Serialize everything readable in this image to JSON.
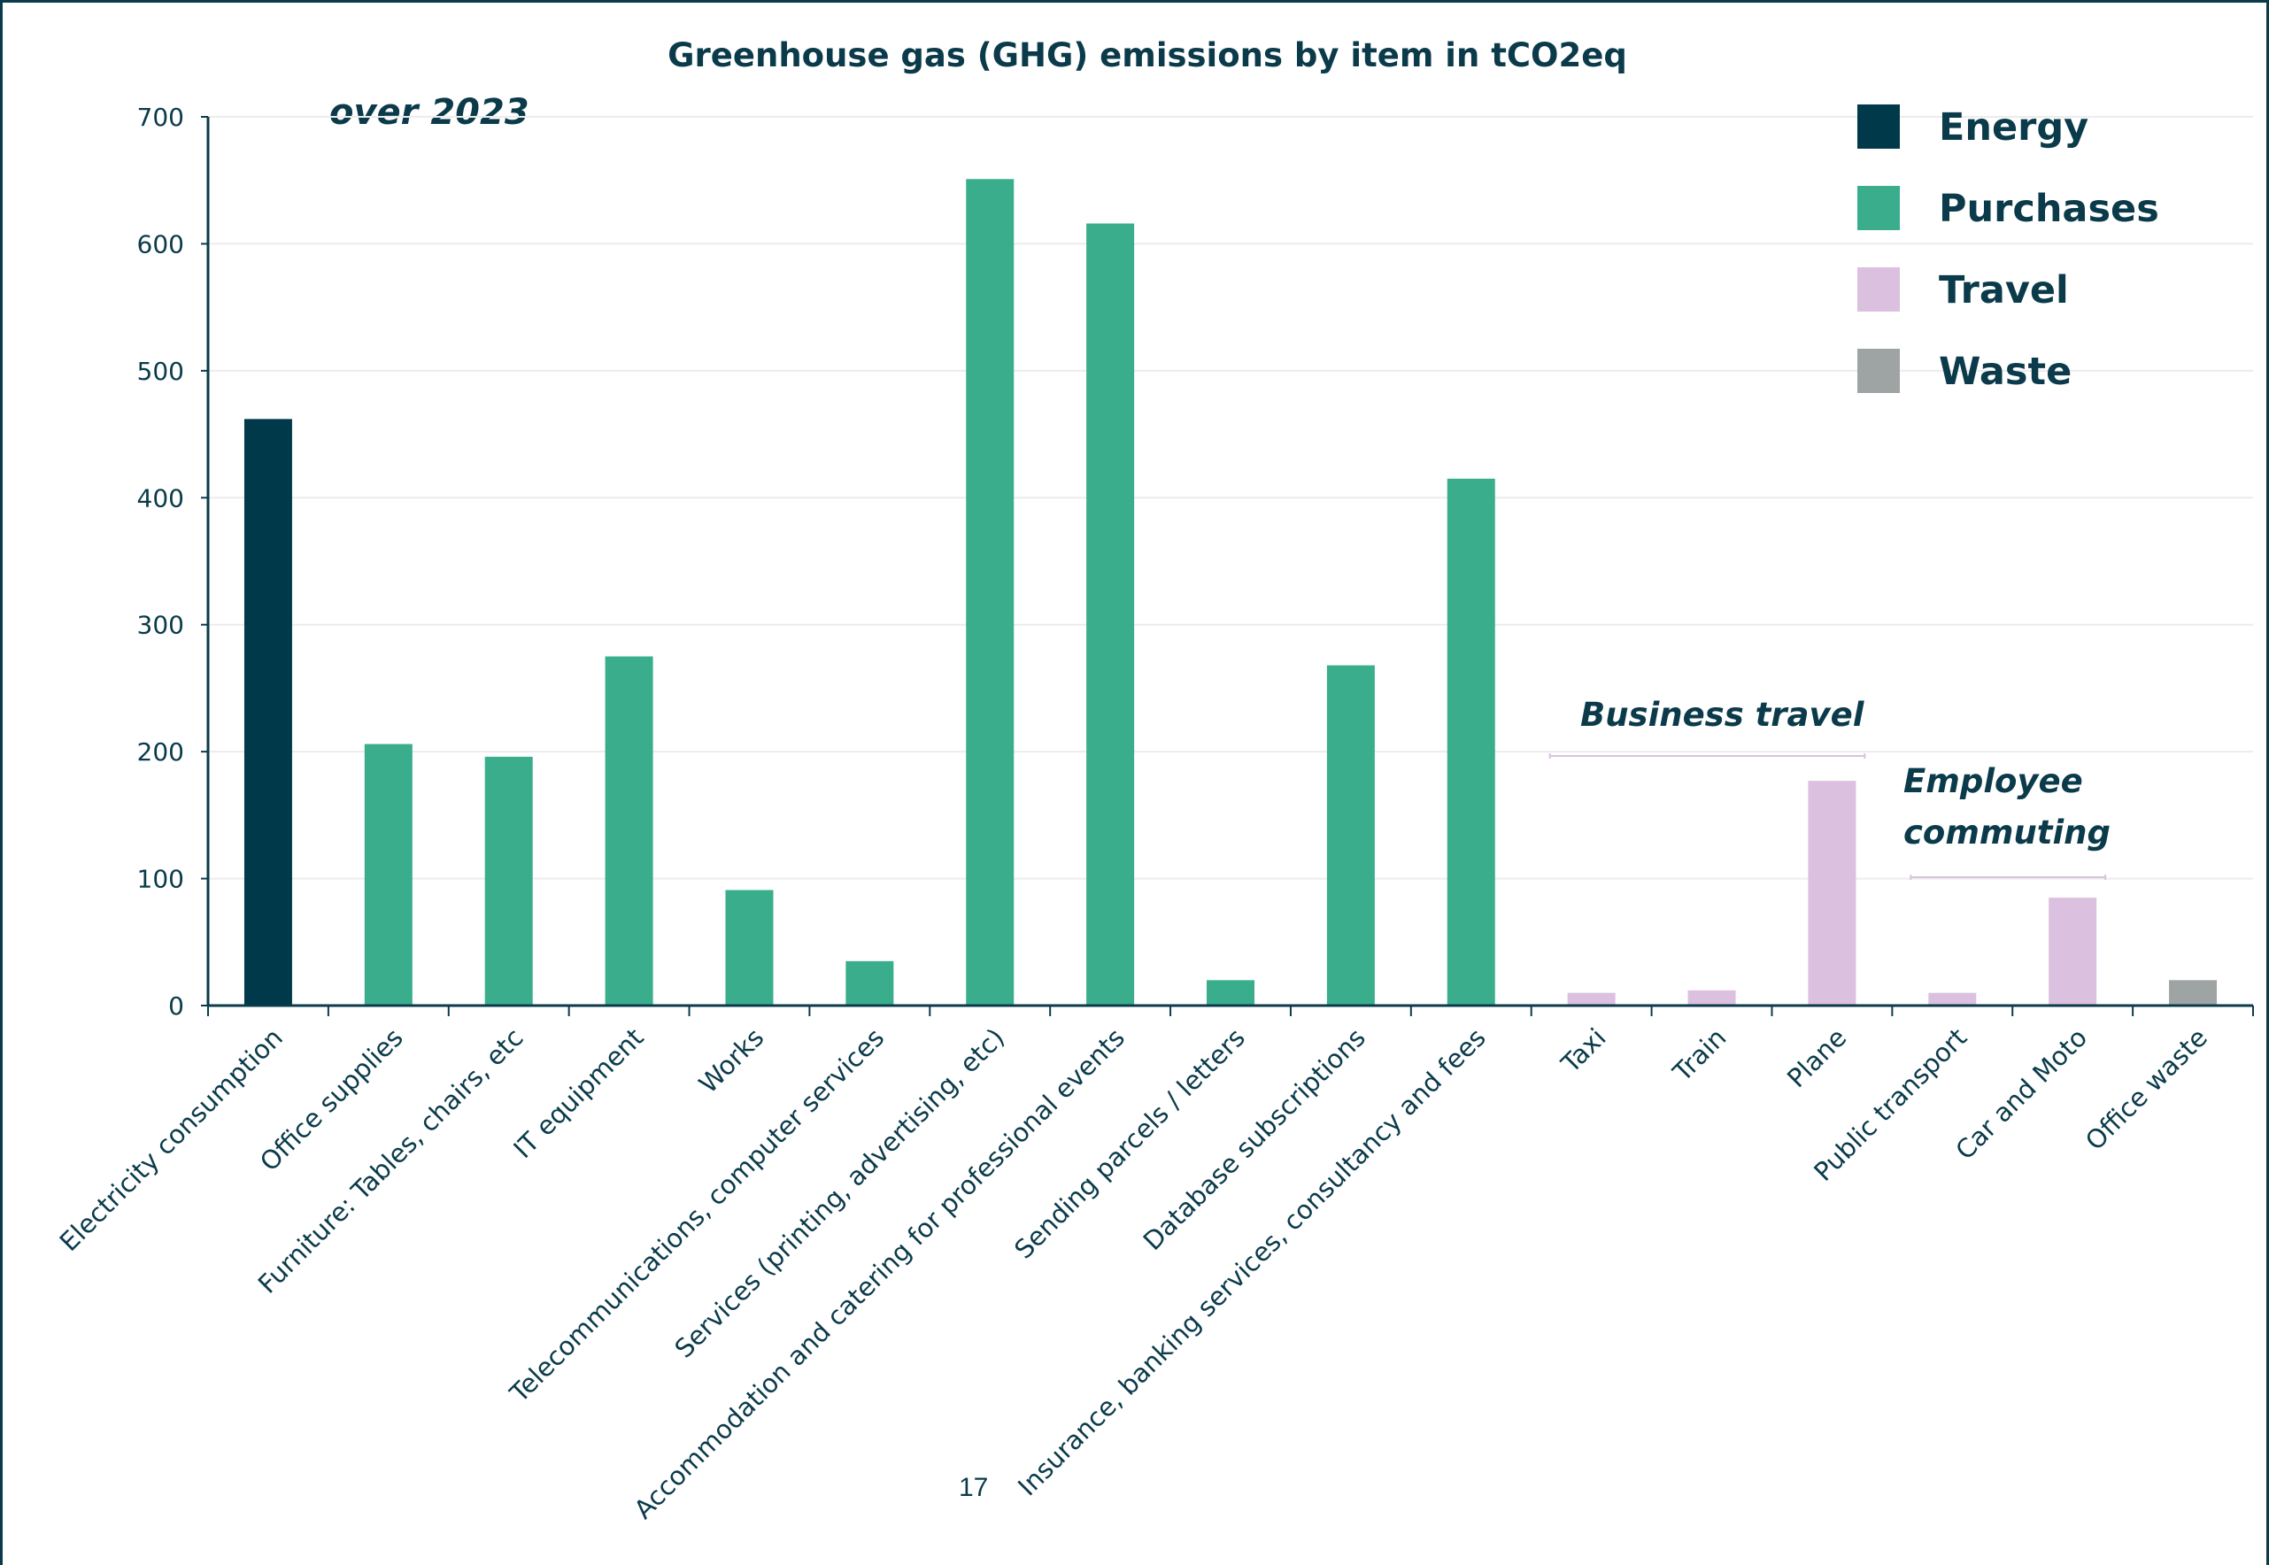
{
  "colors": {
    "Energy": "#003a4a",
    "Purchases": "#3aae8c",
    "Travel": "#dbc1df",
    "Waste": "#9ea3a3",
    "text": "#0b3b4b",
    "grid": "#ececec"
  },
  "page_number": "17",
  "chart_data": {
    "type": "bar",
    "title": "Greenhouse gas (GHG) emissions by item in tCO2eq",
    "subtitle": "over 2023",
    "xlabel": "",
    "ylabel": "",
    "ylim": [
      0,
      700
    ],
    "yticks": [
      0,
      100,
      200,
      300,
      400,
      500,
      600,
      700
    ],
    "grid": true,
    "legend_position": "top-right",
    "legend": [
      "Energy",
      "Purchases",
      "Travel",
      "Waste"
    ],
    "categories": [
      "Electricity consumption",
      "Office supplies",
      "Furniture: Tables, chairs, etc",
      "IT equipment",
      "Works",
      "Telecommunications, computer services",
      "Services (printing, advertising, etc)",
      "Accommodation and catering for professional events",
      "Sending parcels / letters",
      "Database subscriptions",
      "Insurance, banking services, consultancy and fees",
      "Taxi",
      "Train",
      "Plane",
      "Public transport",
      "Car and Moto",
      "Office waste"
    ],
    "values": [
      462,
      206,
      196,
      275,
      91,
      35,
      651,
      616,
      20,
      268,
      415,
      10,
      12,
      177,
      10,
      85,
      20
    ],
    "groups": [
      "Energy",
      "Purchases",
      "Purchases",
      "Purchases",
      "Purchases",
      "Purchases",
      "Purchases",
      "Purchases",
      "Purchases",
      "Purchases",
      "Purchases",
      "Travel",
      "Travel",
      "Travel",
      "Travel",
      "Travel",
      "Waste"
    ],
    "annotations": [
      {
        "text": "Business travel",
        "spans": [
          "Taxi",
          "Plane"
        ]
      },
      {
        "text": "Employee commuting",
        "lines": [
          "Employee",
          "commuting"
        ],
        "spans": [
          "Public transport",
          "Car and Moto"
        ]
      }
    ]
  }
}
